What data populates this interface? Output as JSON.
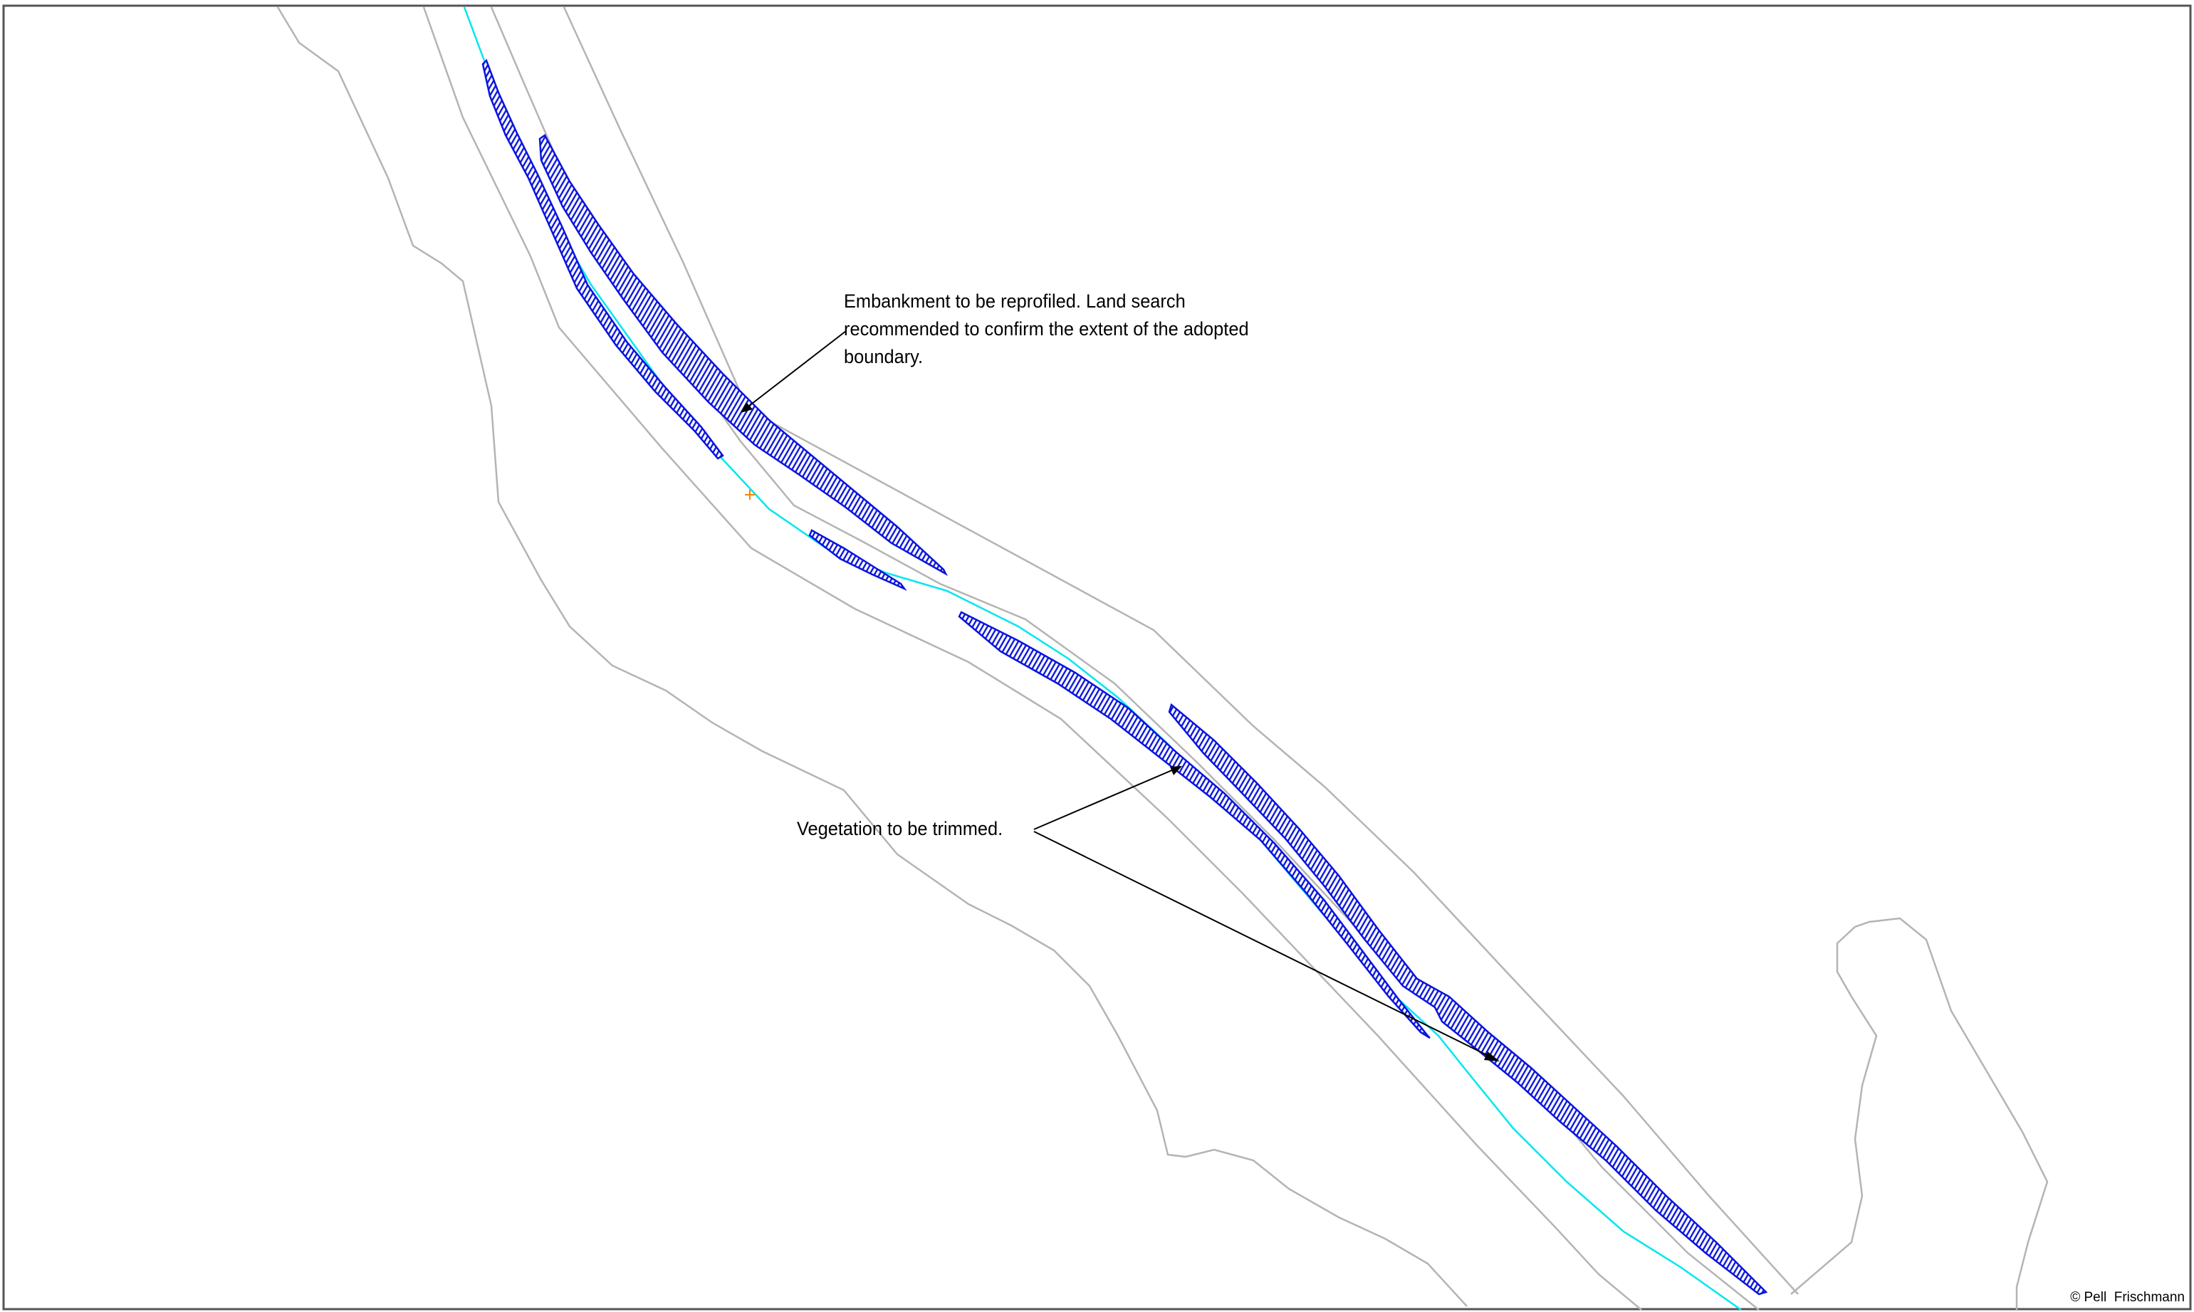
{
  "annotations": {
    "embankment_note": "Embankment to be reprofiled. Land search\nrecommended to confirm the extent of the adopted\nboundary.",
    "vegetation_note": "Vegetation to be trimmed."
  },
  "copyright": "© Pell  Frischmann",
  "colors": {
    "background": "#ffffff",
    "boundary_line": "#b4b4b4",
    "frame": "#555555",
    "embankment": "#0a14dc",
    "watercourse": "#00e6f0",
    "leader": "#000000",
    "survey_marker": "#ff8000"
  }
}
